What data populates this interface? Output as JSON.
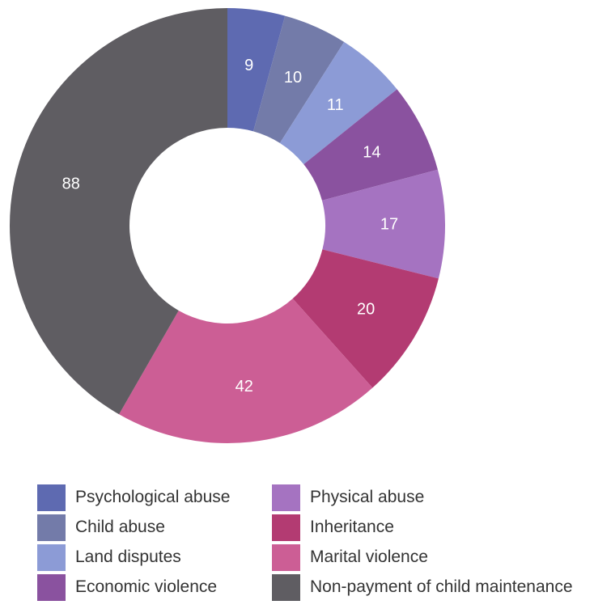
{
  "chart_data": {
    "type": "pie",
    "title": "",
    "donut": true,
    "legend_placement": "bottom",
    "slices": [
      {
        "name": "Psychological abuse",
        "value": 9,
        "label": "9",
        "color": "#5e6ab1"
      },
      {
        "name": "Child abuse",
        "value": 10,
        "label": "10",
        "color": "#737ba9"
      },
      {
        "name": "Land disputes",
        "value": 11,
        "label": "11",
        "color": "#8c9bd6"
      },
      {
        "name": "Economic violence",
        "value": 14,
        "label": "14",
        "color": "#8a529f"
      },
      {
        "name": "Physical abuse",
        "value": 17,
        "label": "17",
        "color": "#a573c1"
      },
      {
        "name": "Inheritance",
        "value": 20,
        "label": "20",
        "color": "#b33b72"
      },
      {
        "name": "Marital violence",
        "value": 42,
        "label": "42",
        "color": "#cc5e95"
      },
      {
        "name": "Non-payment of child maintenance",
        "value": 88,
        "label": "88",
        "color": "#5f5d62"
      }
    ]
  }
}
